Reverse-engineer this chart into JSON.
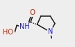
{
  "bg_color": "#eeeeee",
  "bond_color": "#1a1a1a",
  "atom_colors": {
    "O": "#cc2200",
    "N": "#1a1acc",
    "C": "#1a1a1a"
  },
  "figsize": [
    1.08,
    0.67
  ],
  "dpi": 100
}
